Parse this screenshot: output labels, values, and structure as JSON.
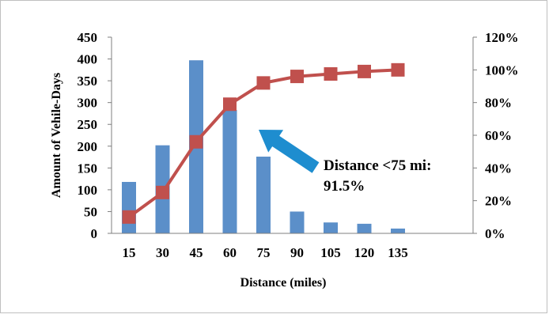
{
  "chart_data": {
    "type": "bar+line",
    "categories": [
      "15",
      "30",
      "45",
      "60",
      "75",
      "90",
      "105",
      "120",
      "135"
    ],
    "series": [
      {
        "type": "bar",
        "axis": "left",
        "color": "#5B8FC9",
        "values": [
          118,
          202,
          397,
          283,
          176,
          50,
          25,
          22,
          11
        ]
      },
      {
        "type": "line",
        "axis": "right",
        "color": "#C0504D",
        "marker": "square",
        "values": [
          0.1,
          0.25,
          0.56,
          0.79,
          0.92,
          0.96,
          0.975,
          0.99,
          1.0
        ]
      }
    ],
    "xlabel": "Distance (miles)",
    "ylabel": "Amount of Vehile-Days",
    "y_left": {
      "min": 0,
      "max": 450,
      "ticks": [
        "0",
        "50",
        "100",
        "150",
        "200",
        "250",
        "300",
        "350",
        "400",
        "450"
      ]
    },
    "y_right": {
      "min": 0,
      "max": 1.2,
      "ticks": [
        "0%",
        "20%",
        "40%",
        "60%",
        "80%",
        "100%",
        "120%"
      ]
    },
    "grid": false,
    "legend": "none",
    "annotation": {
      "line1": "Distance <75 mi:",
      "line2": "91.5%",
      "arrow_color": "#1E8DCF"
    }
  }
}
